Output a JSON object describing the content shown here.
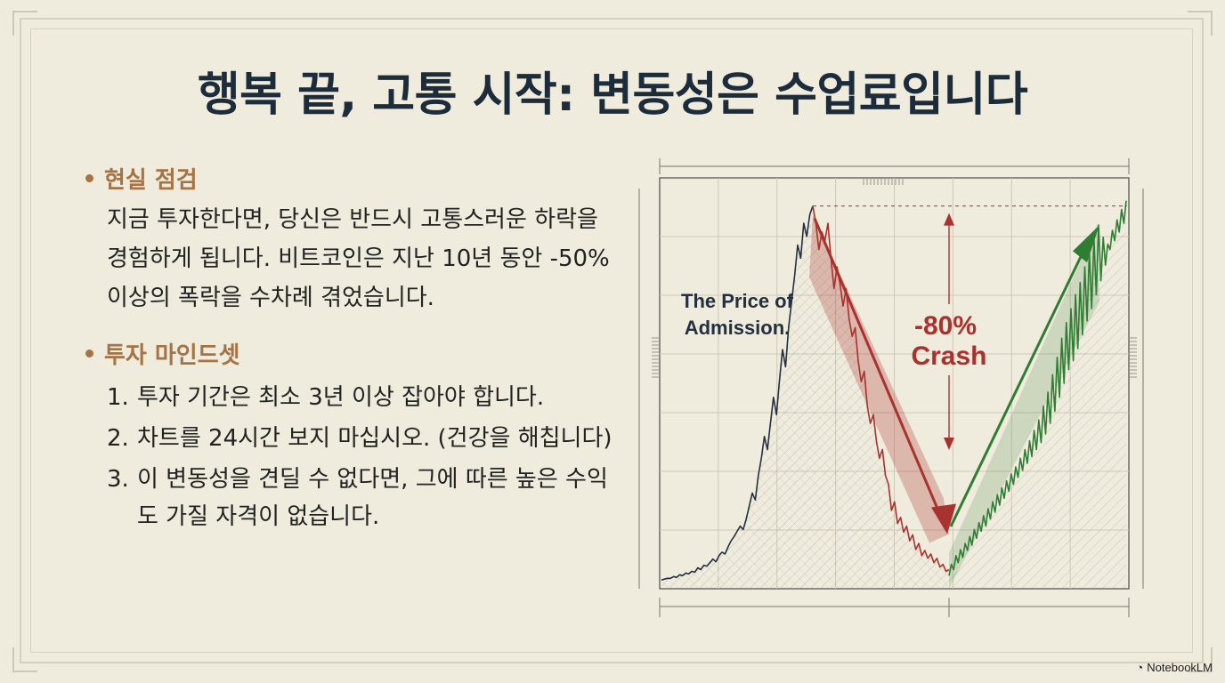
{
  "title": "행복 끝, 고통 시작: 변동성은 수업료입니다",
  "section1": {
    "heading": "현실 점검",
    "body": "지금 투자한다면, 당신은 반드시 고통스러운 하락을 경험하게 됩니다. 비트코인은 지난 10년 동안 -50% 이상의 폭락을 수차례 겪었습니다."
  },
  "section2": {
    "heading": "투자 마인드셋",
    "items": [
      {
        "num": "1.",
        "text": "투자 기간은 최소 3년 이상 잡아야 합니다."
      },
      {
        "num": "2.",
        "text": "차트를 24시간 보지 마십시오. (건강을 해칩니다)"
      },
      {
        "num": "3.",
        "text": "이 변동성을 견딜 수 없다면, 그에 따른 높은 수익도 가질 자격이 없습니다."
      }
    ]
  },
  "chart_data": {
    "type": "line",
    "series": [
      {
        "values": [
          10,
          11,
          12,
          12,
          14,
          13,
          16,
          15,
          18,
          17,
          20,
          19,
          24,
          22,
          27,
          26,
          30,
          34,
          31,
          38,
          42,
          40,
          48,
          55,
          60,
          66,
          72,
          68,
          80,
          95,
          110,
          102,
          130,
          150,
          175,
          160,
          190,
          220,
          200,
          240,
          275,
          255,
          300,
          330,
          360,
          395,
          380,
          420,
          405,
          430,
          440,
          420,
          390,
          410,
          400,
          420,
          380,
          345,
          370,
          350,
          325,
          345,
          310,
          290,
          300,
          262,
          238,
          250,
          210,
          190,
          200,
          170,
          150,
          160,
          130,
          120,
          90,
          100,
          75,
          82,
          65,
          72,
          55,
          62,
          45,
          52,
          38,
          44,
          35,
          40,
          30,
          35,
          25,
          28,
          20,
          22
        ]
      },
      {
        "values": [
          15,
          28,
          22,
          38,
          30,
          45,
          36,
          52,
          44,
          60,
          50,
          68,
          58,
          76,
          66,
          84,
          72,
          92,
          80,
          100,
          88,
          108,
          96,
          116,
          104,
          124,
          112,
          132,
          120,
          140,
          128,
          150,
          136,
          160,
          144,
          170,
          152,
          182,
          160,
          194,
          168,
          210,
          178,
          226,
          190,
          246,
          204,
          266,
          220,
          288,
          236,
          306,
          252,
          322,
          262,
          338,
          276,
          352,
          292,
          370,
          308,
          388,
          322,
          402,
          338,
          418,
          354,
          404,
          372,
          396,
          390,
          412,
          400,
          424,
          410,
          436,
          420,
          446
        ]
      }
    ],
    "annotations": {
      "admission": "The Price of Admission.",
      "crash_pct": "-80%",
      "crash_word": "Crash"
    },
    "colors": {
      "main": "#22303f",
      "crash": "#a8322d",
      "recovery": "#2f7d32"
    }
  },
  "brand": "NotebookLM"
}
